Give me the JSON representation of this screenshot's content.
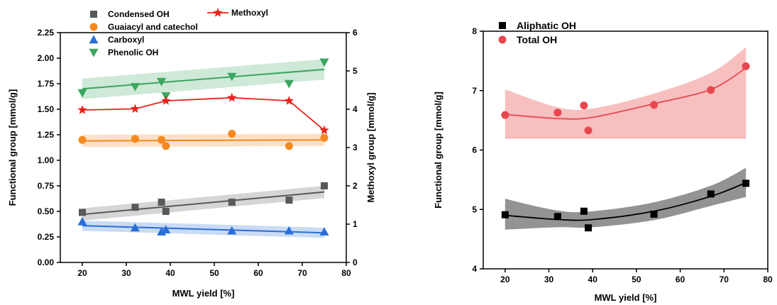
{
  "chart_data": [
    {
      "type": "scatter",
      "xlabel": "MWL yield [%]",
      "ylabel": "Functional group [mmol/g]",
      "y2label": "Methoxyl group [mmol/g]",
      "xlim": [
        15,
        80
      ],
      "ylim": [
        0,
        2.25
      ],
      "y2lim": [
        0,
        6
      ],
      "xticks": [
        "20",
        "30",
        "40",
        "50",
        "60",
        "70",
        "80"
      ],
      "yticks": [
        "0.00",
        "0.25",
        "0.50",
        "0.75",
        "1.00",
        "1.25",
        "1.50",
        "1.75",
        "2.00",
        "2.25"
      ],
      "y2ticks": [
        "0",
        "1",
        "2",
        "3",
        "4",
        "5",
        "6"
      ],
      "legend_position": "top",
      "series": [
        {
          "name": "Condensed OH",
          "marker": "square",
          "color": "#595959",
          "x": [
            20,
            32,
            38,
            39,
            54,
            67,
            75
          ],
          "y": [
            0.49,
            0.54,
            0.59,
            0.5,
            0.59,
            0.61,
            0.75
          ],
          "fit": [
            0.47,
            0.69
          ],
          "band_halfwidth": 0.06
        },
        {
          "name": "Guaiacyl and catechol",
          "marker": "circle",
          "color": "#f5881f",
          "x": [
            20,
            32,
            38,
            39,
            54,
            67,
            75
          ],
          "y": [
            1.2,
            1.21,
            1.2,
            1.14,
            1.26,
            1.14,
            1.22
          ],
          "fit": [
            1.19,
            1.2
          ],
          "band_halfwidth": 0.06
        },
        {
          "name": "Carboxyl",
          "marker": "triangle-up",
          "color": "#2a6fd6",
          "x": [
            20,
            32,
            38,
            39,
            54,
            67,
            75
          ],
          "y": [
            0.4,
            0.34,
            0.3,
            0.32,
            0.31,
            0.31,
            0.3
          ],
          "fit": [
            0.36,
            0.29
          ],
          "band_halfwidth": 0.05
        },
        {
          "name": "Phenolic OH",
          "marker": "triangle-down",
          "color": "#3aa65f",
          "x": [
            20,
            32,
            38,
            39,
            54,
            67,
            75
          ],
          "y": [
            1.66,
            1.72,
            1.77,
            1.63,
            1.82,
            1.75,
            1.96
          ],
          "fit": [
            1.7,
            1.89
          ],
          "band_halfwidth": 0.1
        },
        {
          "name": "Methoxyl",
          "marker": "star",
          "color": "#e8231c",
          "axis": "right",
          "x": [
            20,
            32,
            39,
            54,
            67,
            75
          ],
          "y": [
            3.98,
            4.01,
            4.22,
            4.3,
            4.22,
            3.45
          ]
        }
      ]
    },
    {
      "type": "scatter",
      "xlabel": "MWL yield [%]",
      "ylabel": "Functional group [mmol/g]",
      "xlim": [
        15,
        80
      ],
      "ylim": [
        4,
        8
      ],
      "xticks": [
        "20",
        "30",
        "40",
        "50",
        "60",
        "70",
        "80"
      ],
      "yticks": [
        "4",
        "5",
        "6",
        "7",
        "8"
      ],
      "legend_position": "top-left",
      "series": [
        {
          "name": "Aliphatic OH",
          "marker": "square",
          "color": "#000000",
          "x": [
            20,
            32,
            38,
            39,
            54,
            67,
            75
          ],
          "y": [
            4.91,
            4.88,
            4.97,
            4.69,
            4.92,
            5.26,
            5.44
          ],
          "fit_x": [
            20,
            32,
            40,
            54,
            67,
            75
          ],
          "fit_y": [
            4.9,
            4.83,
            4.83,
            4.97,
            5.22,
            5.45
          ],
          "band_upper": [
            5.18,
            4.98,
            4.97,
            5.12,
            5.4,
            5.7
          ],
          "band_lower": [
            4.66,
            4.7,
            4.7,
            4.82,
            5.06,
            5.21
          ]
        },
        {
          "name": "Total OH",
          "marker": "circle",
          "color": "#e8474f",
          "x": [
            20,
            32,
            38,
            39,
            54,
            67,
            75
          ],
          "y": [
            6.59,
            6.63,
            6.75,
            6.33,
            6.76,
            7.01,
            7.41
          ],
          "fit_x": [
            20,
            32,
            40,
            54,
            67,
            75
          ],
          "fit_y": [
            6.6,
            6.53,
            6.55,
            6.78,
            7.02,
            7.38
          ],
          "band_upper": [
            7.02,
            6.72,
            6.7,
            6.95,
            7.3,
            7.73
          ],
          "band_lower": [
            6.2,
            6.2,
            6.2,
            6.2,
            6.2,
            6.2
          ]
        }
      ]
    }
  ]
}
